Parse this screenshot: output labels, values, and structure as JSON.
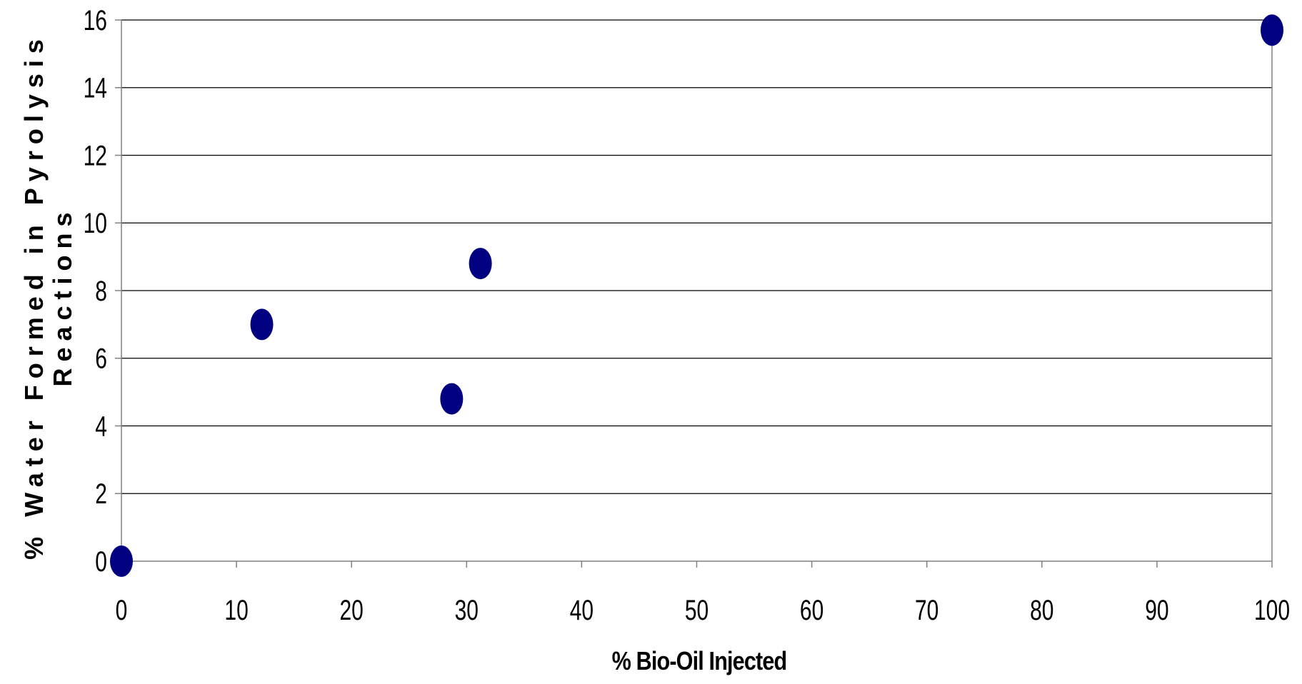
{
  "chart_data": {
    "type": "scatter",
    "title": "",
    "xlabel": "% Bio-Oil Injected",
    "ylabel_lines": [
      "% Water Formed in Pyrolysis",
      "Reactions"
    ],
    "xlim": [
      0,
      100
    ],
    "ylim": [
      0,
      16
    ],
    "x_ticks": [
      0,
      10,
      20,
      30,
      40,
      50,
      60,
      70,
      80,
      90,
      100
    ],
    "y_ticks": [
      0,
      2,
      4,
      6,
      8,
      10,
      12,
      14,
      16
    ],
    "grid": "horizontal",
    "legend": "none",
    "marker": "ellipse",
    "marker_color": "#000080",
    "series": [
      {
        "points": [
          {
            "x": 0,
            "y": 0
          },
          {
            "x": 12.2,
            "y": 7.0
          },
          {
            "x": 28.7,
            "y": 4.8
          },
          {
            "x": 31.2,
            "y": 8.8
          },
          {
            "x": 100,
            "y": 15.7
          }
        ]
      }
    ]
  }
}
